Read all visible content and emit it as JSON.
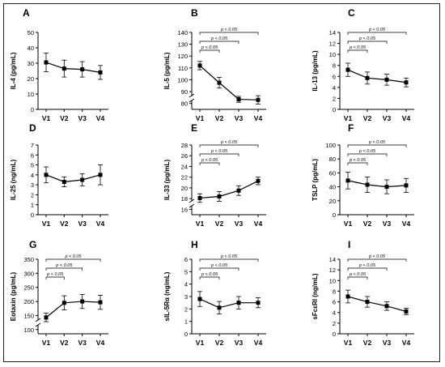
{
  "chart_data": [
    {
      "panel_label": "A",
      "type": "line",
      "categories": [
        "V1",
        "V2",
        "V3",
        "V4"
      ],
      "ylabel": "IL-4 (pg/mL)",
      "yticks": [
        0,
        10,
        20,
        30,
        40,
        50
      ],
      "ylim": [
        0,
        50
      ],
      "values": [
        30.5,
        26.5,
        26,
        24
      ],
      "err": [
        6,
        5.5,
        5,
        4.5
      ],
      "brackets": []
    },
    {
      "panel_label": "B",
      "type": "line",
      "categories": [
        "V1",
        "V2",
        "V3",
        "V4"
      ],
      "ylabel": "IL-5 (pg/mL)",
      "yticks": [
        80,
        90,
        100,
        110,
        120,
        130,
        140
      ],
      "ylim": [
        75,
        140
      ],
      "axis_break": true,
      "values": [
        112,
        97.5,
        83.5,
        83
      ],
      "err": [
        3.5,
        4.5,
        2.5,
        3.5
      ],
      "brackets": [
        {
          "from": "V1",
          "to": "V2",
          "label": "p < 0.05"
        },
        {
          "from": "V1",
          "to": "V3",
          "label": "p < 0.05"
        },
        {
          "from": "V1",
          "to": "V4",
          "label": "p < 0.05"
        }
      ]
    },
    {
      "panel_label": "C",
      "type": "line",
      "categories": [
        "V1",
        "V2",
        "V3",
        "V4"
      ],
      "ylabel": "IL-13 (pg/mL)",
      "yticks": [
        0,
        2,
        4,
        6,
        8,
        10,
        12,
        14
      ],
      "ylim": [
        0,
        14
      ],
      "values": [
        7.2,
        5.7,
        5.4,
        4.9
      ],
      "err": [
        1.2,
        1.1,
        1.0,
        0.8
      ],
      "brackets": [
        {
          "from": "V1",
          "to": "V2",
          "label": "p < 0.05"
        },
        {
          "from": "V1",
          "to": "V3",
          "label": "p < 0.05"
        },
        {
          "from": "V1",
          "to": "V4",
          "label": "p < 0.05"
        }
      ]
    },
    {
      "panel_label": "D",
      "type": "line",
      "categories": [
        "V1",
        "V2",
        "V3",
        "V4"
      ],
      "ylabel": "IL-25 (ng/mL)",
      "yticks": [
        0,
        1,
        2,
        3,
        4,
        5,
        6,
        7
      ],
      "ylim": [
        0,
        7
      ],
      "values": [
        4.0,
        3.3,
        3.5,
        4.0
      ],
      "err": [
        0.8,
        0.5,
        0.6,
        1.0
      ],
      "brackets": []
    },
    {
      "panel_label": "E",
      "type": "line",
      "categories": [
        "V1",
        "V2",
        "V3",
        "V4"
      ],
      "ylabel": "IL-33 (pg/mL)",
      "yticks": [
        16,
        18,
        20,
        22,
        24,
        26,
        28
      ],
      "ylim": [
        15,
        28
      ],
      "axis_break": true,
      "values": [
        18.1,
        18.4,
        19.5,
        21.3
      ],
      "err": [
        0.8,
        0.9,
        0.9,
        0.7
      ],
      "brackets": [
        {
          "from": "V1",
          "to": "V2",
          "label": "p < 0.05"
        },
        {
          "from": "V1",
          "to": "V3",
          "label": "p < 0.05"
        },
        {
          "from": "V1",
          "to": "V4",
          "label": "p < 0.05"
        }
      ]
    },
    {
      "panel_label": "F",
      "type": "line",
      "categories": [
        "V1",
        "V2",
        "V3",
        "V4"
      ],
      "ylabel": "TSLP (pg/mL)",
      "yticks": [
        0,
        20,
        40,
        60,
        80,
        100
      ],
      "ylim": [
        0,
        100
      ],
      "values": [
        49,
        43,
        40,
        42
      ],
      "err": [
        12,
        11,
        10,
        10
      ],
      "brackets": [
        {
          "from": "V1",
          "to": "V2",
          "label": "p < 0.05"
        },
        {
          "from": "V1",
          "to": "V3",
          "label": "p < 0.05"
        },
        {
          "from": "V1",
          "to": "V4",
          "label": "p < 0.05"
        }
      ]
    },
    {
      "panel_label": "G",
      "type": "line",
      "categories": [
        "V1",
        "V2",
        "V3",
        "V4"
      ],
      "ylabel": "Eotaxin (pg/mL)",
      "yticks": [
        100,
        150,
        200,
        250,
        300,
        350
      ],
      "ylim": [
        85,
        350
      ],
      "axis_break": true,
      "values": [
        143,
        195,
        200,
        197
      ],
      "err": [
        15,
        25,
        25,
        25
      ],
      "brackets": [
        {
          "from": "V1",
          "to": "V2",
          "label": "p < 0.05"
        },
        {
          "from": "V1",
          "to": "V3",
          "label": "p < 0.05"
        },
        {
          "from": "V1",
          "to": "V4",
          "label": "p < 0.05"
        }
      ]
    },
    {
      "panel_label": "H",
      "type": "line",
      "categories": [
        "V1",
        "V2",
        "V3",
        "V4"
      ],
      "ylabel": "sIL-5Rα (ng/mL)",
      "yticks": [
        0,
        1,
        2,
        3,
        4,
        5,
        6
      ],
      "ylim": [
        0,
        6
      ],
      "values": [
        2.8,
        2.1,
        2.5,
        2.5
      ],
      "err": [
        0.6,
        0.5,
        0.5,
        0.4
      ],
      "brackets": [
        {
          "from": "V1",
          "to": "V2",
          "label": "p < 0.05"
        },
        {
          "from": "V1",
          "to": "V3",
          "label": "p < 0.05"
        },
        {
          "from": "V1",
          "to": "V4",
          "label": "p < 0.05"
        }
      ]
    },
    {
      "panel_label": "I",
      "type": "line",
      "categories": [
        "V1",
        "V2",
        "V3",
        "V4"
      ],
      "ylabel": "sFcεRI (ng/mL)",
      "yticks": [
        0,
        2,
        4,
        6,
        8,
        10,
        12,
        14
      ],
      "ylim": [
        0,
        14
      ],
      "values": [
        7.0,
        6.0,
        5.2,
        4.2
      ],
      "err": [
        1.2,
        1.0,
        0.8,
        0.6
      ],
      "brackets": [
        {
          "from": "V1",
          "to": "V2",
          "label": "p < 0.05"
        },
        {
          "from": "V1",
          "to": "V3",
          "label": "p < 0.05"
        },
        {
          "from": "V1",
          "to": "V4",
          "label": "p < 0.05"
        }
      ]
    }
  ]
}
